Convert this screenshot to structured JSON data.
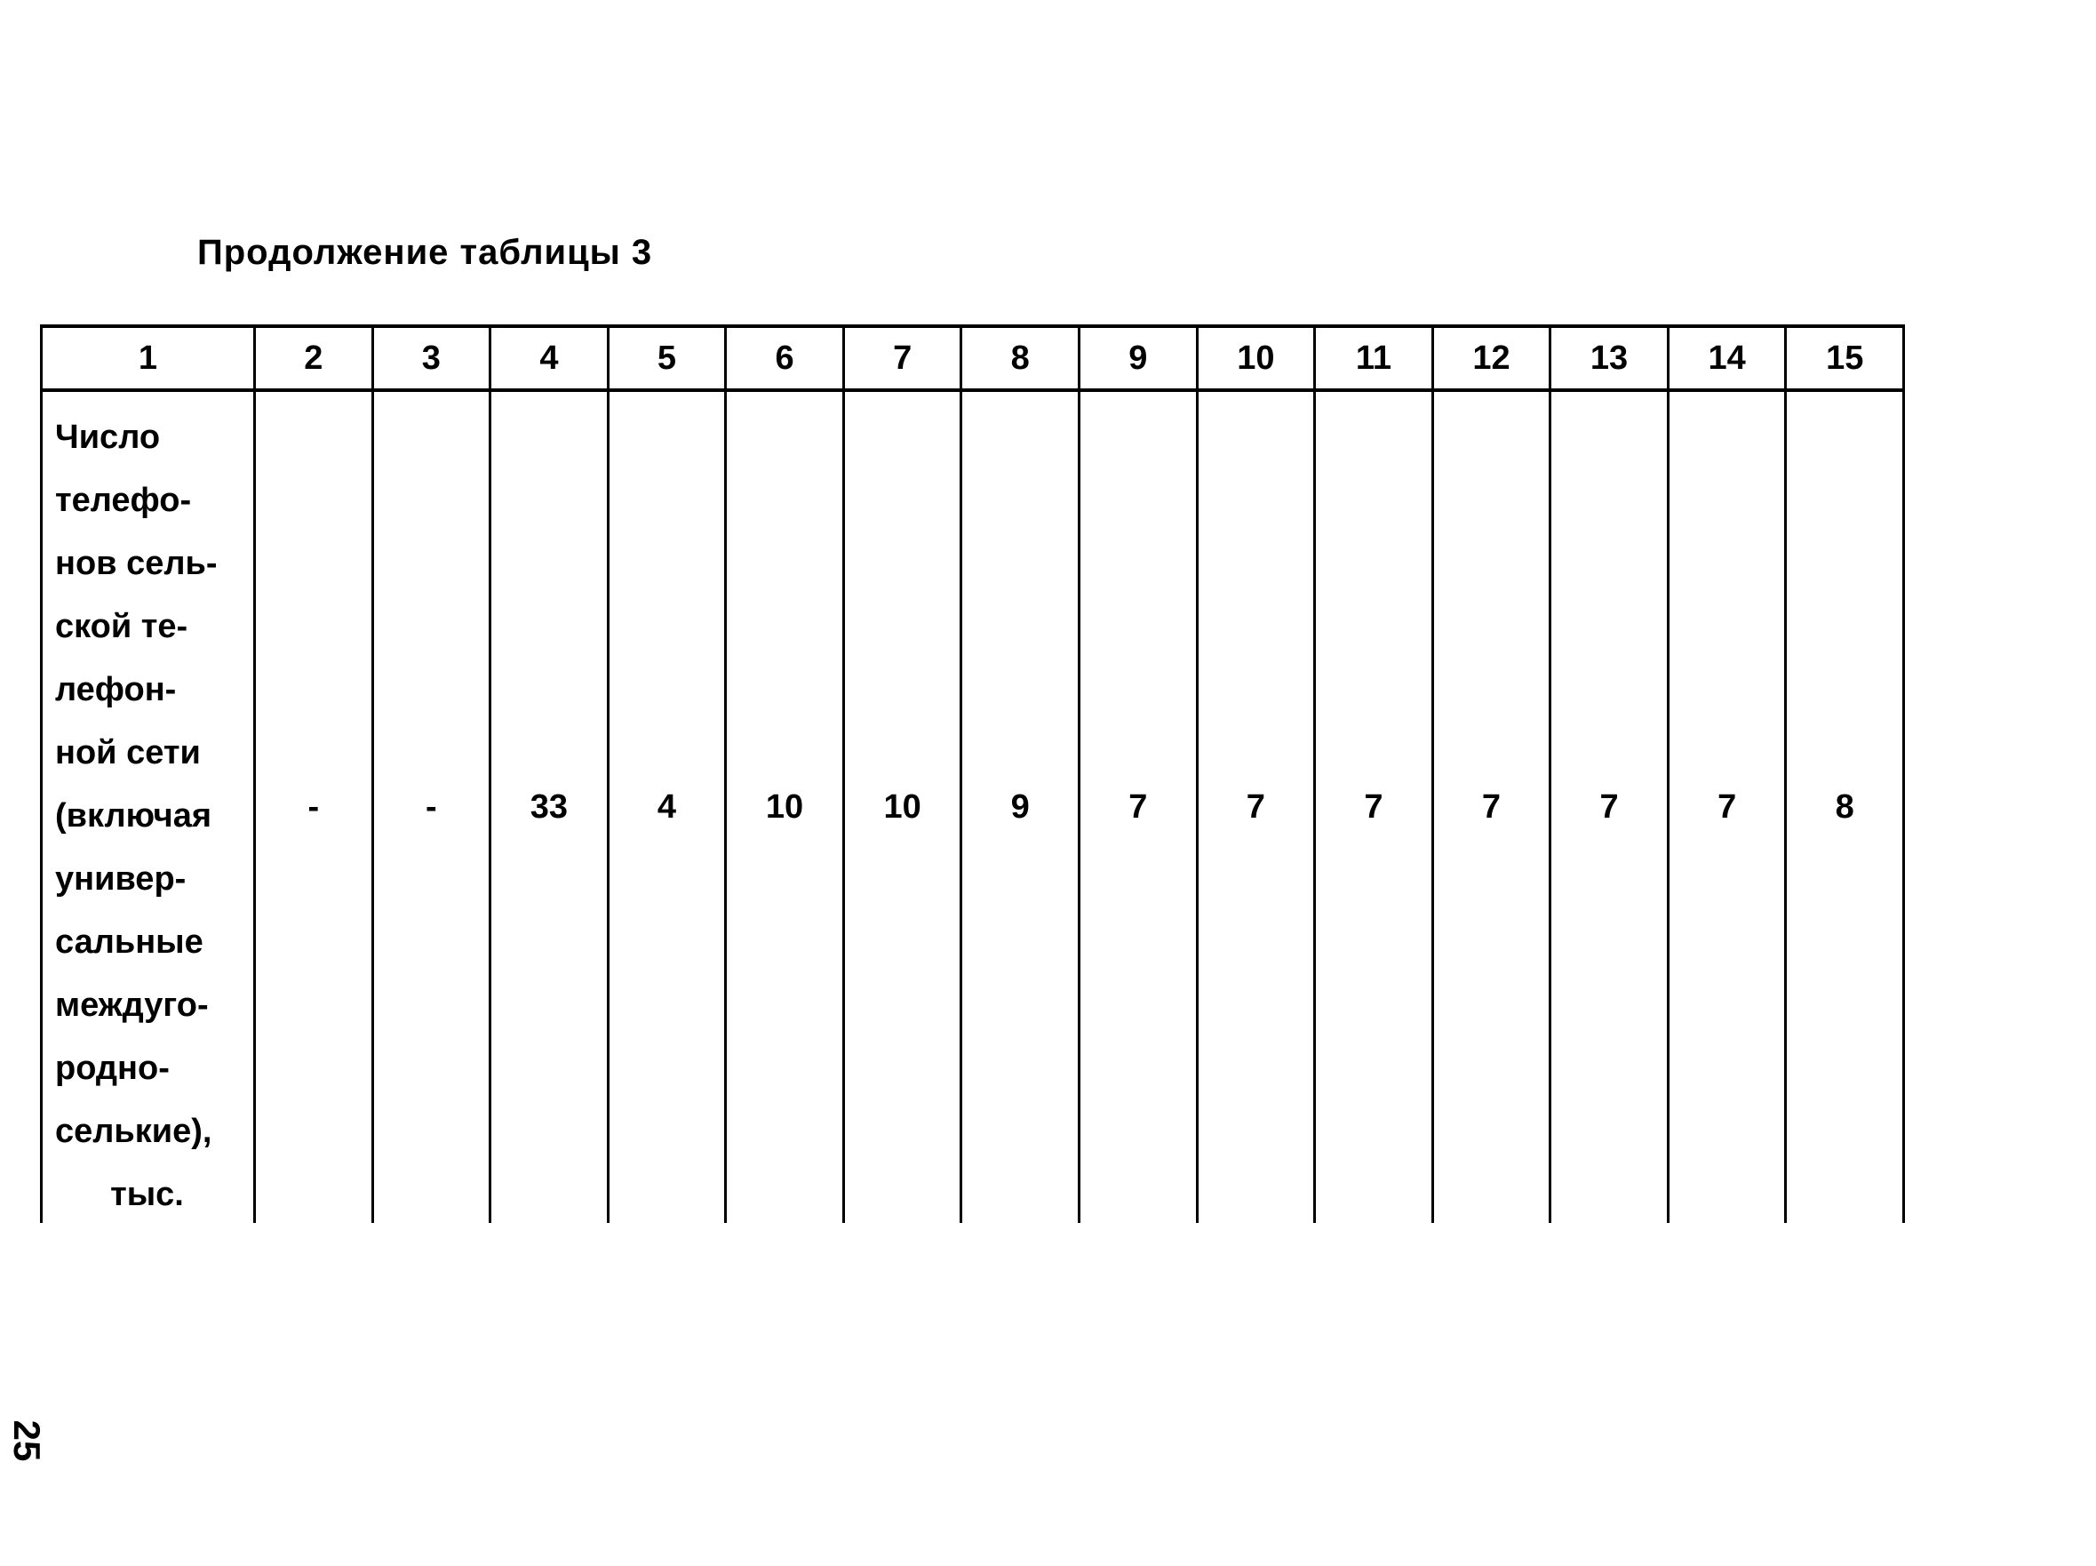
{
  "title": "Продолжение таблицы 3",
  "page_number": "25",
  "table": {
    "header": [
      "1",
      "2",
      "3",
      "4",
      "5",
      "6",
      "7",
      "8",
      "9",
      "10",
      "11",
      "12",
      "13",
      "14",
      "15"
    ],
    "row_label_lines": [
      "Число",
      "телефо-",
      "нов сель-",
      "ской те-",
      "лефон-",
      "ной сети",
      "(включая",
      "универ-",
      "сальные",
      "междуго-",
      "родно-",
      "селькие),",
      "тыс."
    ],
    "values": [
      "-",
      "-",
      "33",
      "4",
      "10",
      "10",
      "9",
      "7",
      "7",
      "7",
      "7",
      "7",
      "7",
      "8"
    ]
  }
}
